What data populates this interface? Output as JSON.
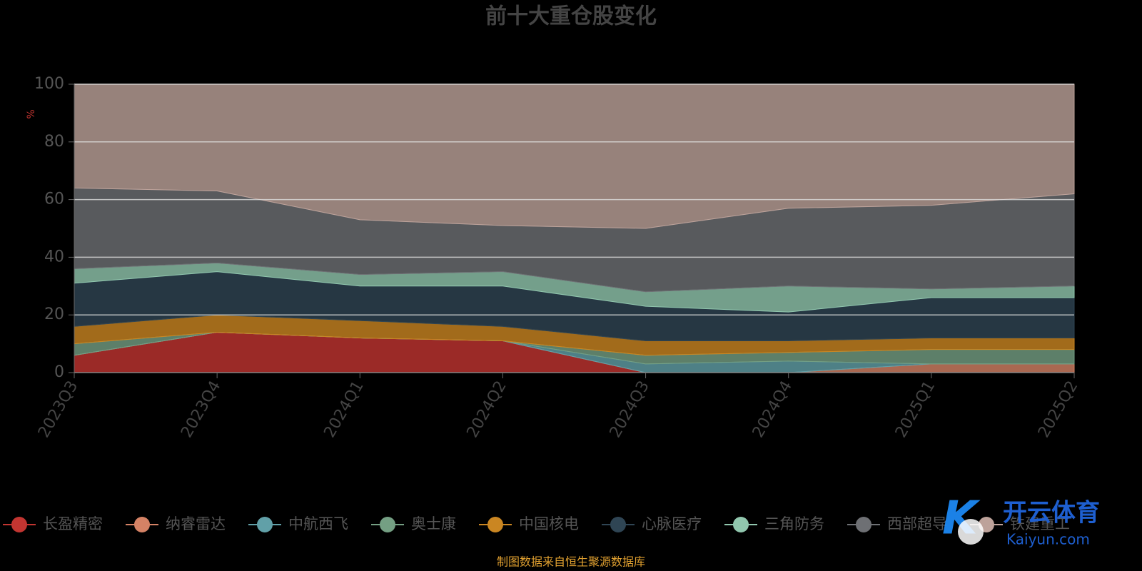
{
  "chart_data": {
    "type": "stacked-area",
    "title": "前十大重仓股变化",
    "y_label": "%",
    "source": "制图数据来自恒生聚源数据库",
    "watermark": {
      "name": "开云体育",
      "site": "Kaiyun.com"
    },
    "categories": [
      "2023Q3",
      "2023Q4",
      "2024Q1",
      "2024Q2",
      "2024Q3",
      "2024Q4",
      "2025Q1",
      "2025Q2"
    ],
    "ylim": [
      0,
      100
    ],
    "yticks": [
      0,
      20,
      40,
      60,
      80,
      100
    ],
    "grid": true,
    "series": [
      {
        "name": "长盈精密",
        "color": "#c23531",
        "values": [
          6,
          14,
          12,
          11,
          0,
          0,
          0,
          0
        ]
      },
      {
        "name": "纳睿雷达",
        "color": "#d48265",
        "values": [
          0,
          0,
          0,
          0,
          0,
          0,
          3,
          3
        ]
      },
      {
        "name": "中航西飞",
        "color": "#61a0a8",
        "values": [
          0,
          0,
          0,
          0,
          3,
          4,
          0,
          0
        ]
      },
      {
        "name": "奥士康",
        "color": "#749f83",
        "values": [
          4,
          0,
          0,
          0,
          3,
          3,
          5,
          5
        ]
      },
      {
        "name": "中国核电",
        "color": "#ca8622",
        "values": [
          6,
          6,
          6,
          5,
          5,
          4,
          4,
          4
        ]
      },
      {
        "name": "心脉医疗",
        "color": "#2f4554",
        "values": [
          15,
          15,
          12,
          14,
          12,
          10,
          14,
          14
        ]
      },
      {
        "name": "三角防务",
        "color": "#91c7ae",
        "values": [
          5,
          3,
          4,
          5,
          5,
          9,
          3,
          4
        ]
      },
      {
        "name": "西部超导",
        "color": "#6e7074",
        "values": [
          28,
          25,
          19,
          16,
          22,
          27,
          29,
          32
        ]
      },
      {
        "name": "铁建重工",
        "color": "#bda29a",
        "values": [
          36,
          37,
          47,
          49,
          50,
          43,
          42,
          38
        ]
      }
    ]
  }
}
